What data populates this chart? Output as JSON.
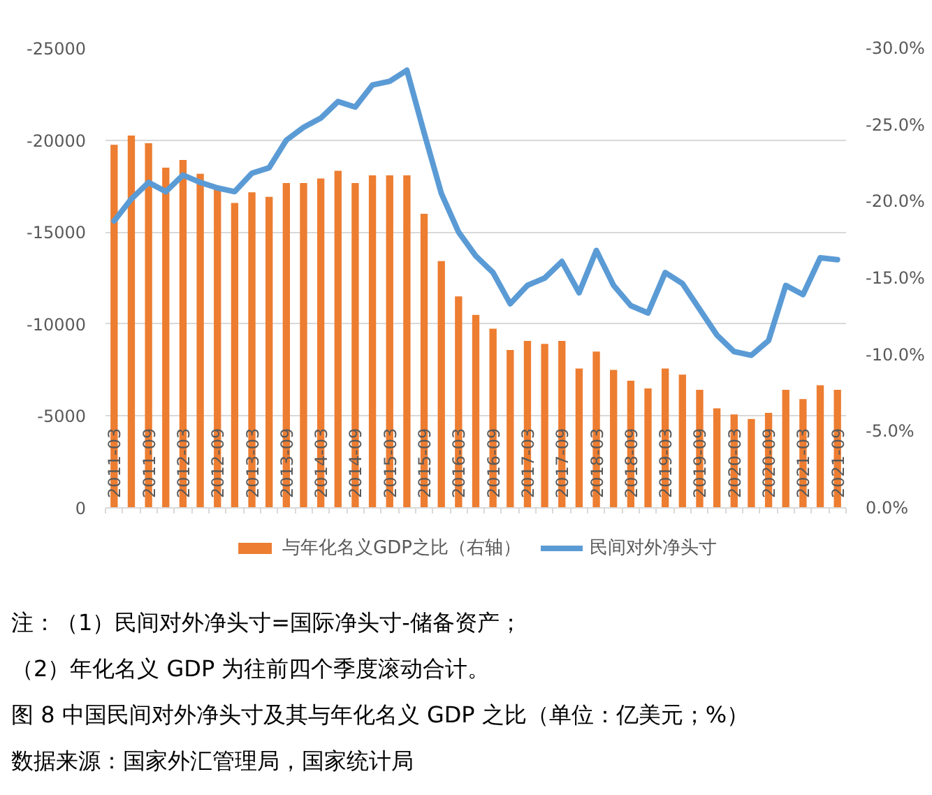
{
  "chart_data": {
    "type": "bar",
    "categories": [
      "2011-03",
      null,
      "2011-09",
      null,
      "2012-03",
      null,
      "2012-09",
      null,
      "2013-03",
      null,
      "2013-09",
      null,
      "2014-03",
      null,
      "2014-09",
      null,
      "2015-03",
      null,
      "2015-09",
      null,
      "2016-03",
      null,
      "2016-09",
      null,
      "2017-03",
      null,
      "2017-09",
      null,
      "2018-03",
      null,
      "2018-09",
      null,
      "2019-03",
      null,
      "2019-09",
      null,
      "2020-03",
      null,
      "2020-09",
      null,
      "2021-03",
      null,
      "2021-09"
    ],
    "series": [
      {
        "name": "与年化名义GDP之比（右轴）",
        "axis": "y2",
        "color": "#ed7d31",
        "values": [
          -23.7,
          -24.3,
          -23.8,
          -22.2,
          -22.7,
          -21.8,
          -20.8,
          -19.9,
          -20.6,
          -20.3,
          -21.2,
          -21.2,
          -21.5,
          -22.0,
          -21.2,
          -21.7,
          -21.7,
          -21.7,
          -19.2,
          -16.1,
          -13.8,
          -12.6,
          -11.7,
          -10.3,
          -10.9,
          -10.7,
          -10.9,
          -9.1,
          -10.2,
          -9.0,
          -8.3,
          -7.8,
          -9.1,
          -8.7,
          -7.7,
          -6.5,
          -6.1,
          -5.8,
          -6.2,
          -7.7,
          -7.1,
          -8.0,
          -7.7
        ]
      },
      {
        "name": "民间对外净头寸",
        "type": "line",
        "color": "#5b9bd5",
        "values": [
          -15600,
          -16800,
          -17700,
          -17200,
          -18100,
          -17700,
          -17400,
          -17200,
          -18200,
          -18500,
          -20000,
          -20700,
          -21200,
          -22100,
          -21800,
          -23000,
          -23200,
          -23800,
          -20400,
          -17100,
          -15000,
          -13700,
          -12800,
          -11100,
          -12100,
          -12500,
          -13400,
          -11700,
          -14000,
          -12100,
          -11000,
          -10600,
          -12800,
          -12200,
          -10800,
          -9400,
          -8500,
          -8300,
          -9100,
          -12100,
          -11600,
          -13600,
          -13500
        ]
      }
    ],
    "ylim": [
      0,
      -25000
    ],
    "yticks": [
      0,
      -5000,
      -10000,
      -15000,
      -20000,
      -25000
    ],
    "y2lim": [
      0,
      -30
    ],
    "y2ticks": [
      {
        "value": 0,
        "label": "0.0%"
      },
      {
        "value": -5,
        "label": "-5.0%"
      },
      {
        "value": -10,
        "label": "-10.0%"
      },
      {
        "value": -15,
        "label": "-15.0%"
      },
      {
        "value": -20,
        "label": "-20.0%"
      },
      {
        "value": -25,
        "label": "-25.0%"
      },
      {
        "value": -30,
        "label": "-30.0%"
      }
    ],
    "grid": "y",
    "legend": "bottom",
    "annotations": [
      "注：（1）民间对外净头寸=国际净头寸-储备资产；",
      "（2）年化名义 GDP 为往前四个季度滚动合计。",
      "图 8 中国民间对外净头寸及其与年化名义 GDP 之比（单位：亿美元；%）",
      "数据来源：国家外汇管理局，国家统计局"
    ]
  }
}
